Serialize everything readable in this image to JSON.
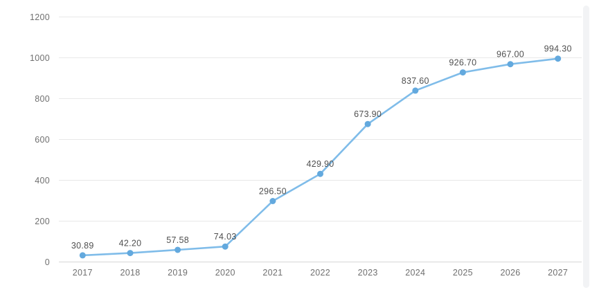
{
  "chart_data": {
    "type": "line",
    "title": "",
    "xlabel": "",
    "ylabel": "",
    "categories": [
      "2017",
      "2018",
      "2019",
      "2020",
      "2021",
      "2022",
      "2023",
      "2024",
      "2025",
      "2026",
      "2027"
    ],
    "series": [
      {
        "name": "value",
        "values": [
          30.89,
          42.2,
          57.58,
          74.03,
          296.5,
          429.9,
          673.9,
          837.6,
          926.7,
          967.0,
          994.3
        ]
      }
    ],
    "point_labels": [
      "30.89",
      "42.20",
      "57.58",
      "74.03",
      "296.50",
      "429.90",
      "673.90",
      "837.60",
      "926.70",
      "967.00",
      "994.30"
    ],
    "ylim": [
      0,
      1200
    ],
    "yticks": [
      0,
      200,
      400,
      600,
      800,
      1000,
      1200
    ],
    "ytick_labels": [
      "0",
      "200",
      "400",
      "600",
      "800",
      "1000",
      "1200"
    ],
    "grid": true,
    "legend_visible": false,
    "colors": {
      "background": "#ffffff",
      "line": "#7fbce9",
      "marker": "#63a9de",
      "grid_line": "#e8e8e8",
      "axis_line": "#d6d6d6",
      "tick_label": "#6f6f6f",
      "data_label": "#4f4f4f",
      "scrollbar": "#f2f3f5"
    }
  }
}
